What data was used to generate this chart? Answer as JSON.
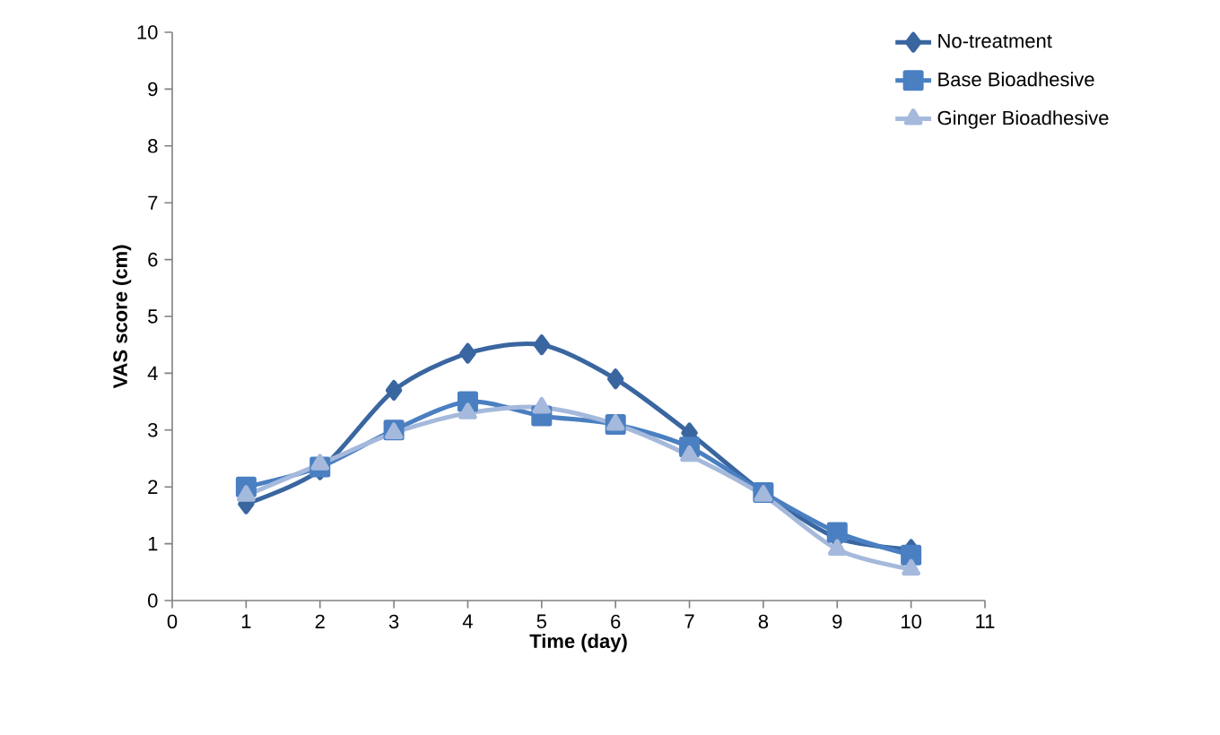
{
  "chart_data": {
    "type": "line",
    "xlabel": "Time (day)",
    "ylabel": "VAS score (cm)",
    "x": [
      1,
      2,
      3,
      4,
      5,
      6,
      7,
      8,
      9,
      10
    ],
    "xlim": [
      0,
      11
    ],
    "xticks": [
      0,
      1,
      2,
      3,
      4,
      5,
      6,
      7,
      8,
      9,
      10,
      11
    ],
    "ylim": [
      0,
      10
    ],
    "yticks": [
      0,
      1,
      2,
      3,
      4,
      5,
      6,
      7,
      8,
      9,
      10
    ],
    "grid": false,
    "legend": "top right",
    "series": [
      {
        "name": "No-treatment",
        "color": "#3a66a0",
        "marker": "diamond",
        "values": [
          1.7,
          2.3,
          3.7,
          4.35,
          4.5,
          3.9,
          2.95,
          1.9,
          1.1,
          0.9
        ]
      },
      {
        "name": "Base Bioadhesive",
        "color": "#4a7fc1",
        "marker": "square",
        "values": [
          2.0,
          2.35,
          3.0,
          3.5,
          3.25,
          3.1,
          2.7,
          1.9,
          1.2,
          0.8
        ]
      },
      {
        "name": "Ginger Bioadhesive",
        "color": "#a5b9dc",
        "marker": "triangle",
        "values": [
          1.85,
          2.4,
          2.95,
          3.3,
          3.4,
          3.1,
          2.55,
          1.85,
          0.9,
          0.55
        ]
      }
    ]
  }
}
